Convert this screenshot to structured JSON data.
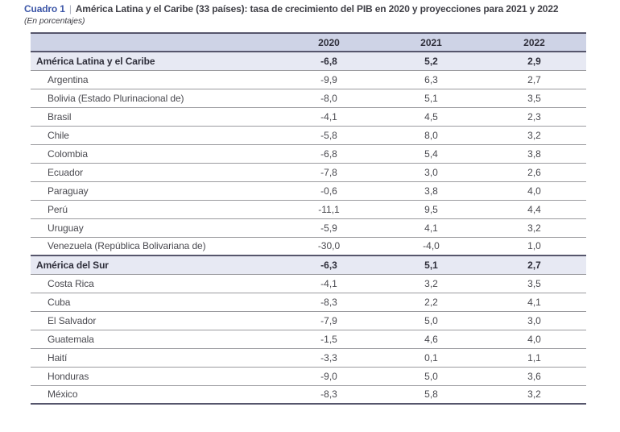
{
  "caption": {
    "label": "Cuadro 1",
    "separator": "|",
    "title": "América Latina y el Caribe (33 países): tasa de crecimiento del PIB en 2020 y proyecciones para 2021 y 2022",
    "subtitle": "(En porcentajes)"
  },
  "colors": {
    "accent_blue": "#3c56a7",
    "header_row_bg": "#ced3e6",
    "group_row_bg": "#e7e9f3",
    "dark_border": "#56566c",
    "row_border": "#9b9b9f",
    "text": "#4a4a50"
  },
  "chart_data": {
    "type": "table",
    "title": "América Latina y el Caribe (33 países): tasa de crecimiento del PIB en 2020 y proyecciones para 2021 y 2022",
    "subtitle": "(En porcentajes)",
    "columns": [
      "",
      "2020",
      "2021",
      "2022"
    ],
    "rows": [
      {
        "name": "América Latina y el Caribe",
        "group": true,
        "values": [
          "-6,8",
          "5,2",
          "2,9"
        ]
      },
      {
        "name": "Argentina",
        "group": false,
        "values": [
          "-9,9",
          "6,3",
          "2,7"
        ]
      },
      {
        "name": "Bolivia (Estado Plurinacional de)",
        "group": false,
        "values": [
          "-8,0",
          "5,1",
          "3,5"
        ]
      },
      {
        "name": "Brasil",
        "group": false,
        "values": [
          "-4,1",
          "4,5",
          "2,3"
        ]
      },
      {
        "name": "Chile",
        "group": false,
        "values": [
          "-5,8",
          "8,0",
          "3,2"
        ]
      },
      {
        "name": "Colombia",
        "group": false,
        "values": [
          "-6,8",
          "5,4",
          "3,8"
        ]
      },
      {
        "name": "Ecuador",
        "group": false,
        "values": [
          "-7,8",
          "3,0",
          "2,6"
        ]
      },
      {
        "name": "Paraguay",
        "group": false,
        "values": [
          "-0,6",
          "3,8",
          "4,0"
        ]
      },
      {
        "name": "Perú",
        "group": false,
        "values": [
          "-11,1",
          "9,5",
          "4,4"
        ]
      },
      {
        "name": "Uruguay",
        "group": false,
        "values": [
          "-5,9",
          "4,1",
          "3,2"
        ]
      },
      {
        "name": "Venezuela (República Bolivariana de)",
        "group": false,
        "values": [
          "-30,0",
          "-4,0",
          "1,0"
        ]
      },
      {
        "name": "América del Sur",
        "group": true,
        "values": [
          "-6,3",
          "5,1",
          "2,7"
        ]
      },
      {
        "name": "Costa Rica",
        "group": false,
        "values": [
          "-4,1",
          "3,2",
          "3,5"
        ]
      },
      {
        "name": "Cuba",
        "group": false,
        "values": [
          "-8,3",
          "2,2",
          "4,1"
        ]
      },
      {
        "name": "El Salvador",
        "group": false,
        "values": [
          "-7,9",
          "5,0",
          "3,0"
        ]
      },
      {
        "name": "Guatemala",
        "group": false,
        "values": [
          "-1,5",
          "4,6",
          "4,0"
        ]
      },
      {
        "name": "Haití",
        "group": false,
        "values": [
          "-3,3",
          "0,1",
          "1,1"
        ]
      },
      {
        "name": "Honduras",
        "group": false,
        "values": [
          "-9,0",
          "5,0",
          "3,6"
        ]
      },
      {
        "name": "México",
        "group": false,
        "values": [
          "-8,3",
          "5,8",
          "3,2"
        ]
      }
    ]
  }
}
